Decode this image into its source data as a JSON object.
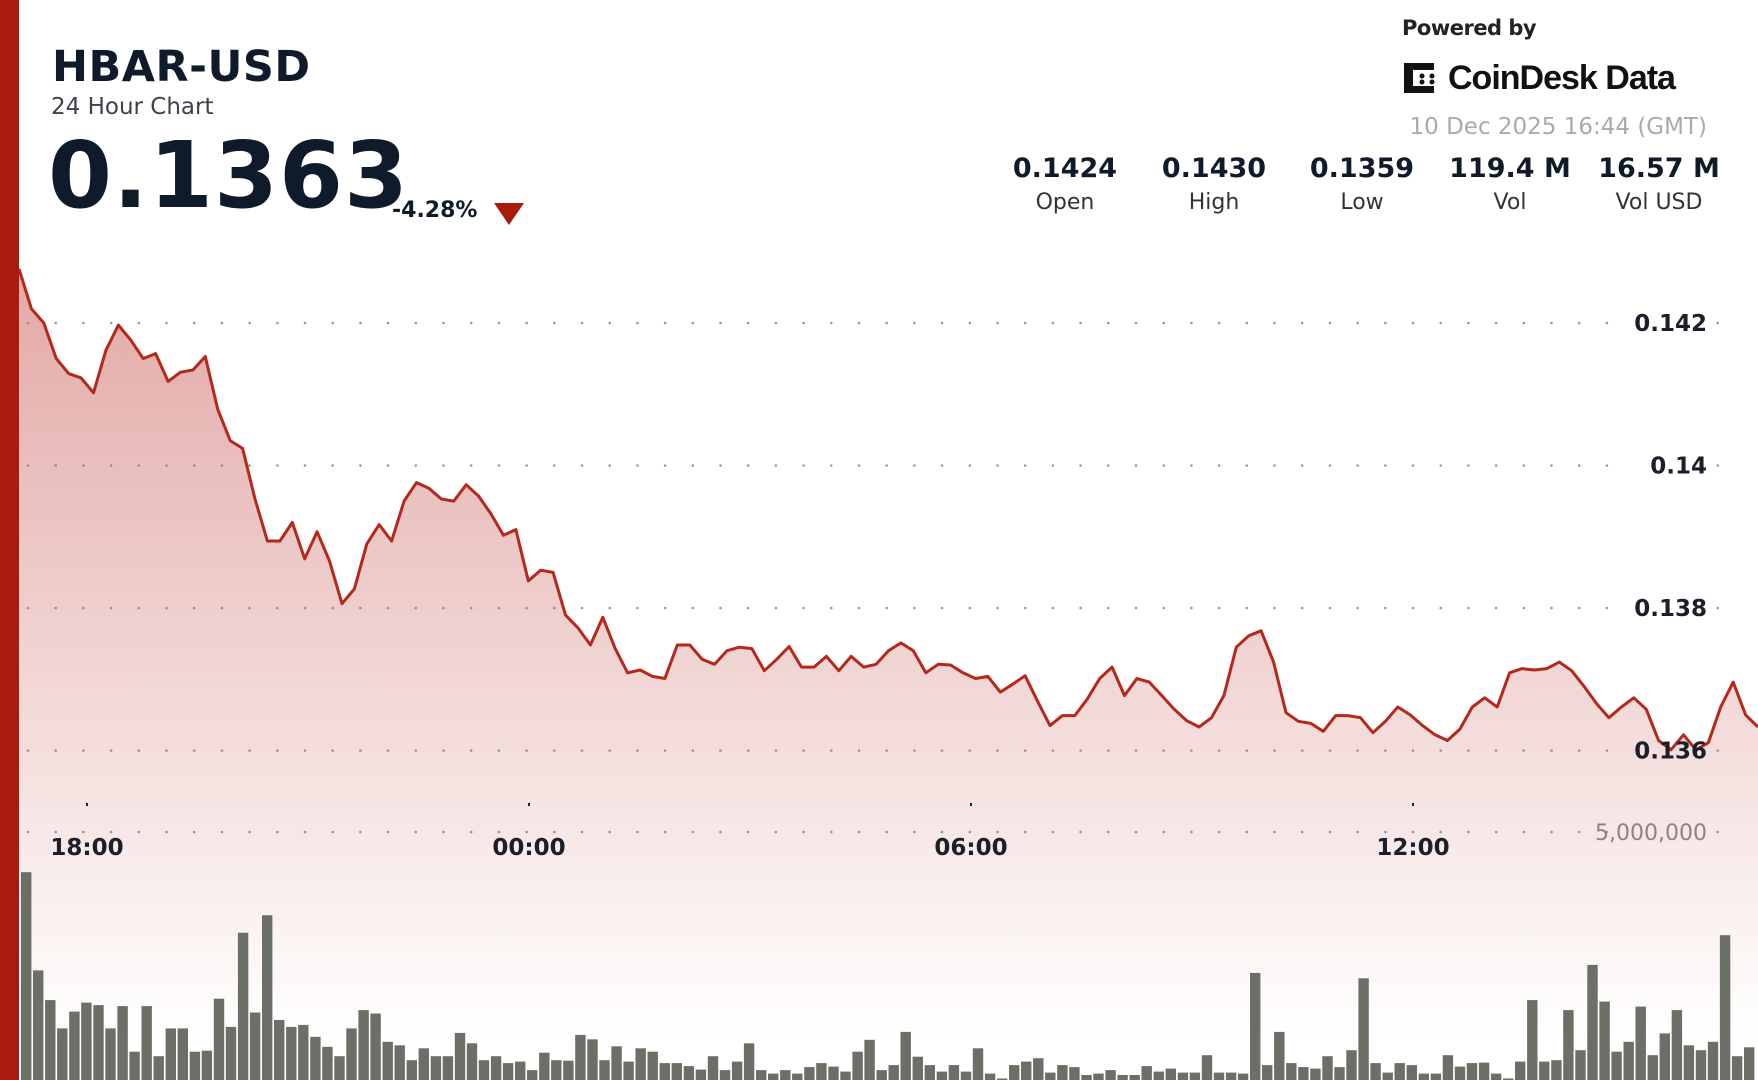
{
  "header": {
    "title": "HBAR-USD",
    "subtitle": "24 Hour Chart",
    "price": "0.1363",
    "change": "-4.28%",
    "direction_icon": "triangle-down-icon"
  },
  "branding": {
    "powered_by": "Powered by",
    "logo_text": "CoinDesk Data",
    "timestamp": "10 Dec 2025 16:44 (GMT)"
  },
  "stats": [
    {
      "value": "0.1424",
      "label": "Open"
    },
    {
      "value": "0.1430",
      "label": "High"
    },
    {
      "value": "0.1359",
      "label": "Low"
    },
    {
      "value": "119.4 M",
      "label": "Vol"
    },
    {
      "value": "16.57 M",
      "label": "Vol USD"
    }
  ],
  "colors": {
    "accent": "#a91b0d",
    "line": "#b5281c",
    "fill": "#c9605a",
    "volume_bars": "#6b6f66",
    "text": "#0f1a2a"
  },
  "chart_data": [
    {
      "type": "area",
      "x_range": [
        "16:44",
        "16:44"
      ],
      "x_ticks": [
        "18:00",
        "00:00",
        "06:00",
        "12:00"
      ],
      "y_ticks": [
        "0.142",
        "0.14",
        "0.138",
        "0.136"
      ],
      "ylim": [
        0.1355,
        0.1435
      ],
      "grid": true,
      "values": [
        0.14276,
        0.1422,
        0.142,
        0.1415,
        0.14129,
        0.14123,
        0.14102,
        0.14162,
        0.14197,
        0.14176,
        0.1415,
        0.14157,
        0.14118,
        0.14131,
        0.14134,
        0.14153,
        0.14079,
        0.14035,
        0.14024,
        0.13953,
        0.13894,
        0.13894,
        0.1392,
        0.13869,
        0.13907,
        0.13866,
        0.13806,
        0.13827,
        0.1389,
        0.13917,
        0.13894,
        0.1395,
        0.13976,
        0.13968,
        0.13953,
        0.1395,
        0.13973,
        0.13957,
        0.13932,
        0.13902,
        0.1391,
        0.13838,
        0.13853,
        0.1385,
        0.1379,
        0.13772,
        0.13748,
        0.13787,
        0.13743,
        0.13709,
        0.13713,
        0.13704,
        0.13701,
        0.13748,
        0.13748,
        0.13728,
        0.13721,
        0.1374,
        0.13745,
        0.13743,
        0.13712,
        0.13728,
        0.13746,
        0.13717,
        0.13717,
        0.13732,
        0.13712,
        0.13732,
        0.13717,
        0.13721,
        0.1374,
        0.13751,
        0.1374,
        0.13709,
        0.13721,
        0.1372,
        0.13709,
        0.13701,
        0.13704,
        0.13682,
        0.13693,
        0.13705,
        0.13669,
        0.13635,
        0.13649,
        0.13649,
        0.13672,
        0.13701,
        0.13717,
        0.13677,
        0.13701,
        0.13696,
        0.13677,
        0.13658,
        0.13642,
        0.13633,
        0.13646,
        0.13677,
        0.13745,
        0.13761,
        0.13768,
        0.13724,
        0.13653,
        0.13641,
        0.13638,
        0.13627,
        0.13649,
        0.13649,
        0.13646,
        0.13625,
        0.13641,
        0.13661,
        0.1365,
        0.13635,
        0.13622,
        0.13614,
        0.1363,
        0.13661,
        0.13674,
        0.13661,
        0.13709,
        0.13715,
        0.13713,
        0.13715,
        0.13724,
        0.13712,
        0.1369,
        0.13666,
        0.13646,
        0.13661,
        0.13674,
        0.13658,
        0.13614,
        0.13601,
        0.13622,
        0.13601,
        0.13611,
        0.13661,
        0.13696,
        0.1365,
        0.13633
      ]
    },
    {
      "type": "bar",
      "y_ticks": [
        "5,000,000"
      ],
      "ylim": [
        0,
        5000000
      ],
      "values": [
        4190000,
        2210000,
        1610000,
        1040000,
        1380000,
        1560000,
        1510000,
        1040000,
        1490000,
        570000,
        1490000,
        480000,
        1040000,
        1040000,
        570000,
        590000,
        1640000,
        1070000,
        2970000,
        1360000,
        3320000,
        1210000,
        1070000,
        1110000,
        870000,
        670000,
        480000,
        1040000,
        1410000,
        1340000,
        770000,
        700000,
        400000,
        640000,
        480000,
        480000,
        950000,
        740000,
        400000,
        480000,
        340000,
        370000,
        200000,
        550000,
        400000,
        390000,
        910000,
        820000,
        400000,
        680000,
        370000,
        640000,
        570000,
        340000,
        340000,
        280000,
        210000,
        480000,
        200000,
        370000,
        740000,
        200000,
        130000,
        200000,
        130000,
        260000,
        340000,
        270000,
        170000,
        570000,
        810000,
        200000,
        300000,
        970000,
        470000,
        300000,
        170000,
        300000,
        170000,
        640000,
        130000,
        30000,
        300000,
        370000,
        440000,
        150000,
        300000,
        260000,
        100000,
        130000,
        200000,
        100000,
        100000,
        280000,
        170000,
        230000,
        150000,
        150000,
        500000,
        150000,
        150000,
        130000,
        2160000,
        300000,
        970000,
        340000,
        260000,
        230000,
        480000,
        260000,
        600000,
        2050000,
        340000,
        150000,
        340000,
        300000,
        130000,
        130000,
        500000,
        270000,
        340000,
        350000,
        130000,
        30000,
        370000,
        1610000,
        370000,
        400000,
        1410000,
        600000,
        2320000,
        1580000,
        570000,
        770000,
        1480000,
        500000,
        940000,
        1410000,
        700000,
        600000,
        770000,
        2920000,
        480000,
        660000
      ]
    }
  ]
}
